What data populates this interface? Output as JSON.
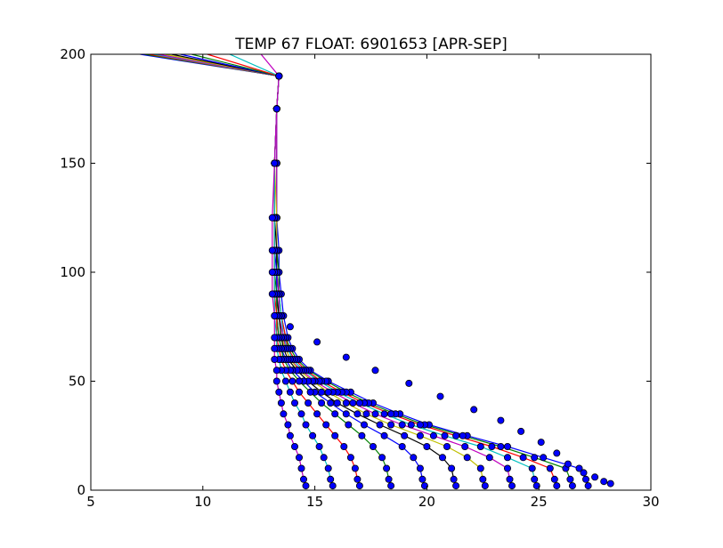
{
  "chart_data": {
    "type": "line",
    "title": "TEMP 67 FLOAT: 6901653 [APR-SEP]",
    "xlabel": "",
    "ylabel": "",
    "xlim": [
      5,
      30
    ],
    "ylim": [
      0,
      200
    ],
    "x_ticks": [
      5,
      10,
      15,
      20,
      25,
      30
    ],
    "y_ticks": [
      0,
      50,
      100,
      150,
      200
    ],
    "x_tick_labels": [
      "5",
      "10",
      "15",
      "20",
      "25",
      "30"
    ],
    "y_tick_labels": [
      "0",
      "50",
      "100",
      "150",
      "200"
    ],
    "grid": false,
    "legend": false,
    "marker_color": "#0000ff",
    "series_colors": [
      "#0000ff",
      "#008000",
      "#ff0000",
      "#00bfbf",
      "#bf00bf",
      "#bfbf00",
      "#000000"
    ],
    "depths": [
      2,
      5,
      10,
      15,
      20,
      25,
      30,
      35,
      40,
      45,
      50,
      55,
      60,
      65,
      70,
      80,
      90,
      100,
      110,
      125,
      150,
      175,
      190,
      200
    ],
    "series": [
      {
        "values": [
          27.2,
          27.1,
          26.8,
          25.2,
          23.6,
          21.8,
          20.1,
          18.8,
          17.6,
          16.6,
          15.6,
          14.8,
          14.3,
          14.0,
          13.8,
          13.6,
          13.5,
          13.4,
          13.4,
          13.3,
          13.3,
          13.3,
          13.4,
          7.2
        ]
      },
      {
        "values": [
          26.5,
          26.4,
          26.2,
          24.8,
          23.3,
          21.6,
          19.9,
          18.6,
          17.4,
          16.4,
          15.5,
          14.7,
          14.2,
          13.9,
          13.7,
          13.5,
          13.4,
          13.4,
          13.3,
          13.3,
          13.3,
          13.3,
          13.4,
          7.4
        ]
      },
      {
        "values": [
          25.8,
          25.7,
          25.5,
          24.3,
          22.9,
          21.3,
          19.7,
          18.4,
          17.2,
          16.2,
          15.3,
          14.6,
          14.1,
          13.8,
          13.7,
          13.5,
          13.4,
          13.3,
          13.3,
          13.3,
          13.3,
          13.3,
          13.4,
          7.6
        ]
      },
      {
        "values": [
          24.9,
          24.8,
          24.7,
          23.6,
          22.4,
          20.8,
          19.3,
          18.1,
          17.0,
          16.0,
          15.2,
          14.5,
          14.0,
          13.8,
          13.6,
          13.5,
          13.4,
          13.3,
          13.3,
          13.3,
          13.3,
          13.3,
          13.4,
          7.8
        ]
      },
      {
        "values": [
          23.8,
          23.7,
          23.6,
          22.8,
          21.7,
          20.3,
          18.9,
          17.7,
          16.7,
          15.8,
          15.0,
          14.4,
          13.9,
          13.7,
          13.6,
          13.4,
          13.4,
          13.3,
          13.3,
          13.3,
          13.3,
          13.3,
          13.4,
          8.0
        ]
      },
      {
        "values": [
          22.6,
          22.5,
          22.4,
          21.8,
          20.9,
          19.7,
          18.4,
          17.3,
          16.4,
          15.6,
          14.9,
          14.3,
          13.9,
          13.7,
          13.5,
          13.4,
          13.3,
          13.3,
          13.3,
          13.3,
          13.2,
          13.3,
          13.4,
          8.3
        ]
      },
      {
        "values": [
          21.3,
          21.2,
          21.1,
          20.7,
          20.0,
          19.0,
          17.9,
          16.9,
          16.0,
          15.3,
          14.7,
          14.2,
          13.8,
          13.6,
          13.5,
          13.4,
          13.3,
          13.3,
          13.3,
          13.2,
          13.2,
          13.3,
          13.4,
          8.6
        ]
      },
      {
        "values": [
          19.9,
          19.8,
          19.7,
          19.4,
          18.9,
          18.1,
          17.2,
          16.4,
          15.7,
          15.0,
          14.5,
          14.0,
          13.7,
          13.5,
          13.4,
          13.3,
          13.3,
          13.3,
          13.2,
          13.2,
          13.2,
          13.3,
          13.4,
          9.0
        ]
      },
      {
        "values": [
          18.4,
          18.3,
          18.2,
          18.0,
          17.6,
          17.1,
          16.5,
          15.9,
          15.3,
          14.8,
          14.3,
          13.9,
          13.6,
          13.5,
          13.4,
          13.3,
          13.3,
          13.2,
          13.2,
          13.2,
          13.2,
          13.3,
          13.4,
          9.5
        ]
      },
      {
        "values": [
          17.0,
          16.9,
          16.8,
          16.6,
          16.3,
          15.9,
          15.5,
          15.1,
          14.7,
          14.3,
          14.0,
          13.7,
          13.5,
          13.4,
          13.3,
          13.3,
          13.2,
          13.2,
          13.2,
          13.2,
          13.2,
          13.3,
          13.4,
          10.2
        ]
      },
      {
        "values": [
          15.8,
          15.7,
          15.6,
          15.4,
          15.2,
          14.9,
          14.6,
          14.4,
          14.1,
          13.9,
          13.7,
          13.5,
          13.4,
          13.3,
          13.3,
          13.2,
          13.2,
          13.2,
          13.2,
          13.2,
          13.2,
          13.3,
          13.4,
          11.2
        ]
      },
      {
        "values": [
          14.6,
          14.5,
          14.4,
          14.3,
          14.1,
          13.9,
          13.8,
          13.6,
          13.5,
          13.4,
          13.3,
          13.3,
          13.2,
          13.2,
          13.2,
          13.2,
          13.1,
          13.1,
          13.1,
          13.1,
          13.2,
          13.3,
          13.4,
          12.6
        ]
      }
    ],
    "obs_temps": [
      28.2,
      27.9,
      27.5,
      27.0,
      26.3,
      25.8,
      25.1,
      24.2,
      23.3,
      22.1,
      20.6,
      19.2,
      17.7,
      16.4,
      15.1,
      13.9
    ],
    "obs_depths": [
      3,
      4,
      6,
      8,
      12,
      17,
      22,
      27,
      32,
      37,
      43,
      49,
      55,
      61,
      68,
      75
    ]
  }
}
